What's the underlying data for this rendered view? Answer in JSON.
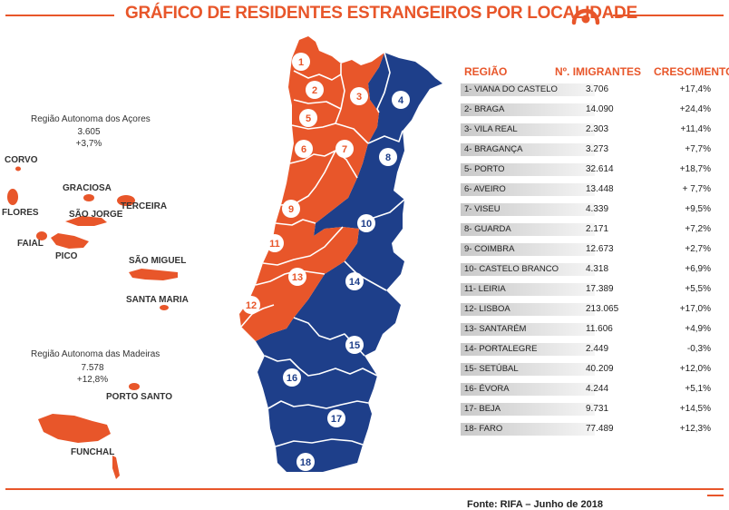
{
  "title": "GRÁFICO DE RESIDENTES ESTRANGEIROS POR LOCALIDADE",
  "colors": {
    "accent": "#e8562a",
    "north": "#e8562a",
    "south": "#1e3f8a"
  },
  "acores": {
    "name": "Região Autonoma dos Açores",
    "total": "3.605",
    "growth": "+3,7%"
  },
  "madeira": {
    "name": "Região Autonoma das Madeiras",
    "total": "7.578",
    "growth": "+12,8%"
  },
  "islands": {
    "corvo": "CORVO",
    "flores": "FLORES",
    "graciosa": "GRACIOSA",
    "terceira": "TERCEIRA",
    "sao_jorge": "SÃO JORGE",
    "faial": "FAIAL",
    "pico": "PICO",
    "sao_miguel": "SÃO MIGUEL",
    "santa_maria": "SANTA MARIA",
    "porto_santo": "PORTO SANTO",
    "funchal": "FUNCHAL"
  },
  "table": {
    "headers": {
      "region": "REGIÃO",
      "immigrants": "Nº. IMIGRANTES",
      "growth": "CRESCIMENTO"
    },
    "rows": [
      {
        "num": "1",
        "name": "1- VIANA DO CASTELO",
        "immigrants": "3.706",
        "growth": "+17,4%"
      },
      {
        "num": "2",
        "name": "2- BRAGA",
        "immigrants": "14.090",
        "growth": "+24,4%"
      },
      {
        "num": "3",
        "name": "3- VILA REAL",
        "immigrants": "2.303",
        "growth": "+11,4%"
      },
      {
        "num": "4",
        "name": "4- BRAGANÇA",
        "immigrants": "3.273",
        "growth": "+7,7%"
      },
      {
        "num": "5",
        "name": "5- PORTO",
        "immigrants": "32.614",
        "growth": "+18,7%"
      },
      {
        "num": "6",
        "name": "6- AVEIRO",
        "immigrants": "13.448",
        "growth": "+ 7,7%"
      },
      {
        "num": "7",
        "name": "7- VISEU",
        "immigrants": "4.339",
        "growth": "+9,5%"
      },
      {
        "num": "8",
        "name": "8- GUARDA",
        "immigrants": "2.171",
        "growth": "+7,2%"
      },
      {
        "num": "9",
        "name": "9- COIMBRA",
        "immigrants": "12.673",
        "growth": "+2,7%"
      },
      {
        "num": "10",
        "name": "10- CASTELO BRANCO",
        "immigrants": "4.318",
        "growth": "+6,9%"
      },
      {
        "num": "11",
        "name": "11- LEIRIA",
        "immigrants": "17.389",
        "growth": "+5,5%"
      },
      {
        "num": "12",
        "name": "12- LISBOA",
        "immigrants": "213.065",
        "growth": "+17,0%"
      },
      {
        "num": "13",
        "name": "13- SANTARÉM",
        "immigrants": "11.606",
        "growth": "+4,9%"
      },
      {
        "num": "14",
        "name": "14- PORTALEGRE",
        "immigrants": "2.449",
        "growth": "-0,3%"
      },
      {
        "num": "15",
        "name": "15- SETÚBAL",
        "immigrants": "40.209",
        "growth": "+12,0%"
      },
      {
        "num": "16",
        "name": "16- ÉVORA",
        "immigrants": "4.244",
        "growth": "+5,1%"
      },
      {
        "num": "17",
        "name": "17- BEJA",
        "immigrants": "9.731",
        "growth": "+14,5%"
      },
      {
        "num": "18",
        "name": "18- FARO",
        "immigrants": "77.489",
        "growth": "+12,3%"
      }
    ]
  },
  "source": "Fonte:  RIFA – Junho de 2018"
}
